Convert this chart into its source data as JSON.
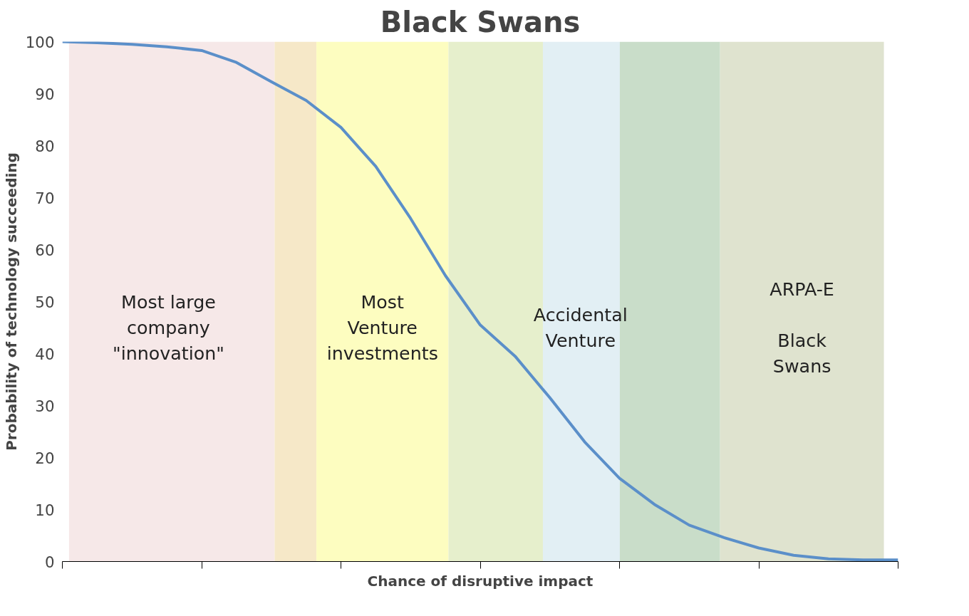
{
  "chart_data": {
    "type": "line",
    "title": "Black Swans",
    "xlabel": "Chance of disruptive impact",
    "ylabel": "Probability of technology succeeding",
    "categories": [
      null,
      null,
      null,
      null,
      null,
      null,
      null,
      null,
      null,
      null,
      null,
      null,
      null,
      null,
      null,
      null,
      null,
      null,
      null,
      null,
      null,
      null,
      null,
      null,
      null
    ],
    "series": [
      {
        "color": "#5b8fc9",
        "values": [
          100,
          99.8,
          99.5,
          99,
          98.3,
          96,
          92.3,
          88.7,
          83.5,
          76,
          66,
          55,
          45.5,
          39.5,
          31.5,
          23,
          16,
          11,
          7,
          4.6,
          2.6,
          1.2,
          0.5,
          0.3,
          0.3
        ]
      }
    ],
    "ylim": [
      0,
      100
    ],
    "yticks": [
      0,
      10,
      20,
      30,
      40,
      50,
      60,
      70,
      80,
      90,
      100
    ],
    "annotations": [
      "Most large\ncompany\n\"innovation\"",
      "Most\nVenture\ninvestments",
      "Accidental\nVenture",
      "ARPA-E\n\nBlack\nSwans"
    ],
    "grid": false,
    "tick_labels": "y",
    "line_style": "solid",
    "marker": "none"
  }
}
